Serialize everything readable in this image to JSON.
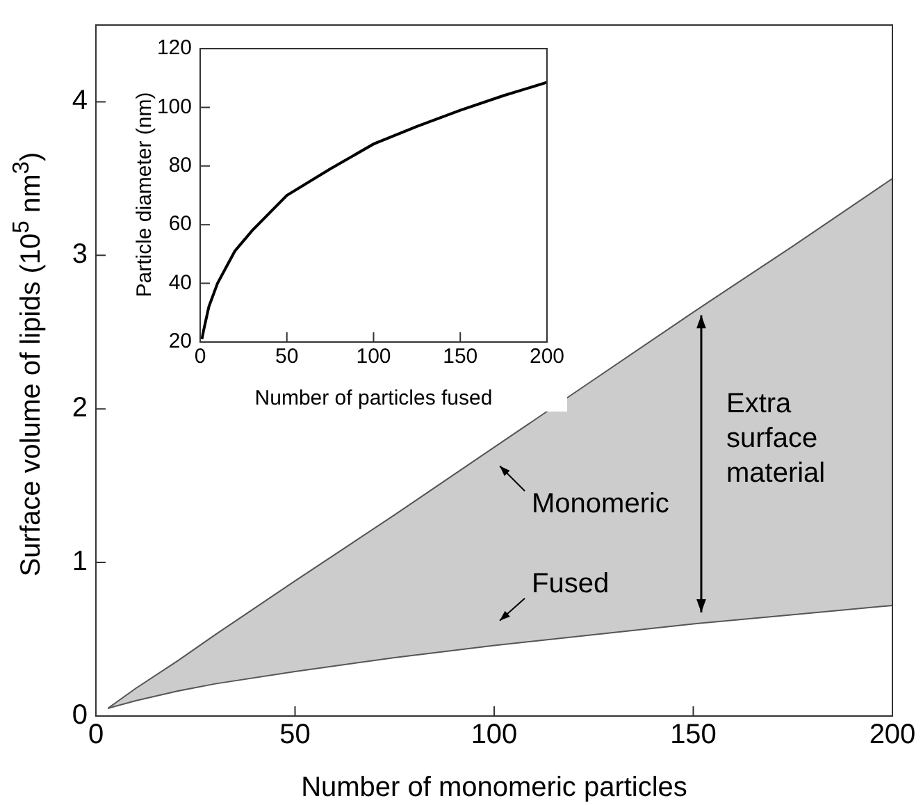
{
  "chart_data": [
    {
      "type": "area",
      "xlabel": "Number of monomeric particles",
      "ylabel": "Surface volume of lipids (10$^{5}$ nm$^{3}$)",
      "x": [
        3,
        10,
        20,
        30,
        50,
        75,
        100,
        125,
        150,
        175,
        200
      ],
      "series": [
        {
          "color": "#cccccc",
          "values": [
            0.05,
            0.18,
            0.35,
            0.53,
            0.88,
            1.31,
            1.75,
            2.19,
            2.63,
            3.06,
            3.5
          ]
        },
        {
          "color": "#ffffff",
          "values": [
            0.05,
            0.1,
            0.16,
            0.21,
            0.29,
            0.38,
            0.46,
            0.53,
            0.6,
            0.66,
            0.72
          ]
        }
      ],
      "xlim": [
        0,
        200
      ],
      "xticks": [
        0,
        50,
        100,
        150,
        200
      ],
      "ylim": [
        0,
        4.5
      ],
      "yticks": [
        0,
        1,
        2,
        3,
        4
      ],
      "annotations": [
        "Monomeric",
        "Fused",
        "Extra surface material"
      ]
    },
    {
      "type": "line",
      "xlabel": "Number of particles fused",
      "ylabel": "Particle diameter (nm)",
      "x": [
        1,
        2,
        5,
        10,
        20,
        30,
        50,
        75,
        100,
        125,
        150,
        175,
        200
      ],
      "series": [
        {
          "color": "#000000",
          "values": [
            21,
            24,
            32,
            40,
            51,
            58,
            70,
            79,
            87.5,
            93.5,
            99,
            104,
            108.5
          ]
        }
      ],
      "xlim": [
        0,
        200
      ],
      "xticks": [
        0,
        50,
        100,
        150,
        200
      ],
      "ylim": [
        20,
        120
      ],
      "yticks": [
        20,
        40,
        60,
        80,
        100,
        120
      ]
    }
  ]
}
